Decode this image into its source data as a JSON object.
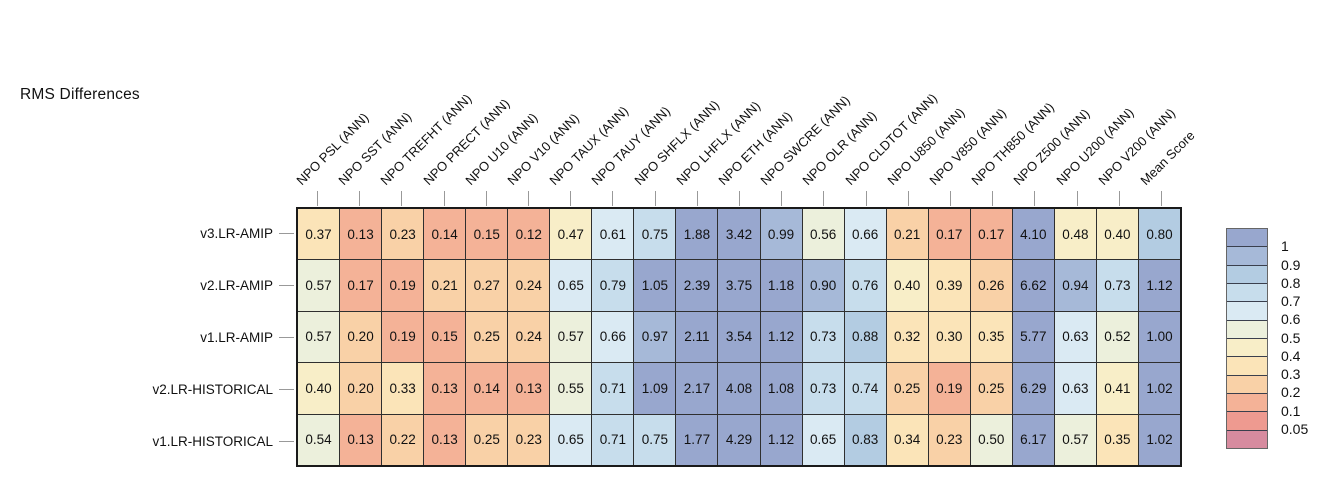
{
  "chart_data": {
    "type": "heatmap",
    "title": "RMS Differences",
    "legend_position": "right",
    "rows": [
      "v3.LR-AMIP",
      "v2.LR-AMIP",
      "v1.LR-AMIP",
      "v2.LR-HISTORICAL",
      "v1.LR-HISTORICAL"
    ],
    "columns": [
      "NPO PSL (ANN)",
      "NPO SST (ANN)",
      "NPO TREFHT (ANN)",
      "NPO PRECT (ANN)",
      "NPO U10 (ANN)",
      "NPO V10 (ANN)",
      "NPO TAUX (ANN)",
      "NPO TAUY (ANN)",
      "NPO SHFLX (ANN)",
      "NPO LHFLX (ANN)",
      "NPO ETH (ANN)",
      "NPO SWCRE (ANN)",
      "NPO OLR (ANN)",
      "NPO CLDTOT (ANN)",
      "NPO U850 (ANN)",
      "NPO V850 (ANN)",
      "NPO TH850 (ANN)",
      "NPO Z500 (ANN)",
      "NPO U200 (ANN)",
      "NPO V200 (ANN)",
      "Mean Score"
    ],
    "values": [
      [
        0.37,
        0.13,
        0.23,
        0.14,
        0.15,
        0.12,
        0.47,
        0.61,
        0.75,
        1.88,
        3.42,
        0.99,
        0.56,
        0.66,
        0.21,
        0.17,
        0.17,
        4.1,
        0.48,
        0.4,
        0.8
      ],
      [
        0.57,
        0.17,
        0.19,
        0.21,
        0.27,
        0.24,
        0.65,
        0.79,
        1.05,
        2.39,
        3.75,
        1.18,
        0.9,
        0.76,
        0.4,
        0.39,
        0.26,
        6.62,
        0.94,
        0.73,
        1.12
      ],
      [
        0.57,
        0.2,
        0.19,
        0.15,
        0.25,
        0.24,
        0.57,
        0.66,
        0.97,
        2.11,
        3.54,
        1.12,
        0.73,
        0.88,
        0.32,
        0.3,
        0.35,
        5.77,
        0.63,
        0.52,
        1.0
      ],
      [
        0.4,
        0.2,
        0.33,
        0.13,
        0.14,
        0.13,
        0.55,
        0.71,
        1.09,
        2.17,
        4.08,
        1.08,
        0.73,
        0.74,
        0.25,
        0.19,
        0.25,
        6.29,
        0.63,
        0.41,
        1.02
      ],
      [
        0.54,
        0.13,
        0.22,
        0.13,
        0.25,
        0.23,
        0.65,
        0.71,
        0.75,
        1.77,
        4.29,
        1.12,
        0.65,
        0.83,
        0.34,
        0.23,
        0.5,
        6.17,
        0.57,
        0.35,
        1.02
      ]
    ],
    "legend": {
      "tick_labels": [
        "1",
        "0.9",
        "0.8",
        "0.7",
        "0.6",
        "0.5",
        "0.4",
        "0.3",
        "0.2",
        "0.1",
        "0.05"
      ],
      "bands": [
        {
          "min": 1.0,
          "color": "#98a7ce"
        },
        {
          "min": 0.9,
          "color": "#a6b9d8"
        },
        {
          "min": 0.8,
          "color": "#b3cce2"
        },
        {
          "min": 0.7,
          "color": "#c7ddec"
        },
        {
          "min": 0.6,
          "color": "#daeaf3"
        },
        {
          "min": 0.5,
          "color": "#ecf0dc"
        },
        {
          "min": 0.4,
          "color": "#f8eec8"
        },
        {
          "min": 0.3,
          "color": "#fbe4b8"
        },
        {
          "min": 0.2,
          "color": "#f9d1a7"
        },
        {
          "min": 0.1,
          "color": "#f4b297"
        },
        {
          "min": 0.05,
          "color": "#ee9a90"
        },
        {
          "min": null,
          "color": "#d78b9f"
        }
      ]
    }
  }
}
